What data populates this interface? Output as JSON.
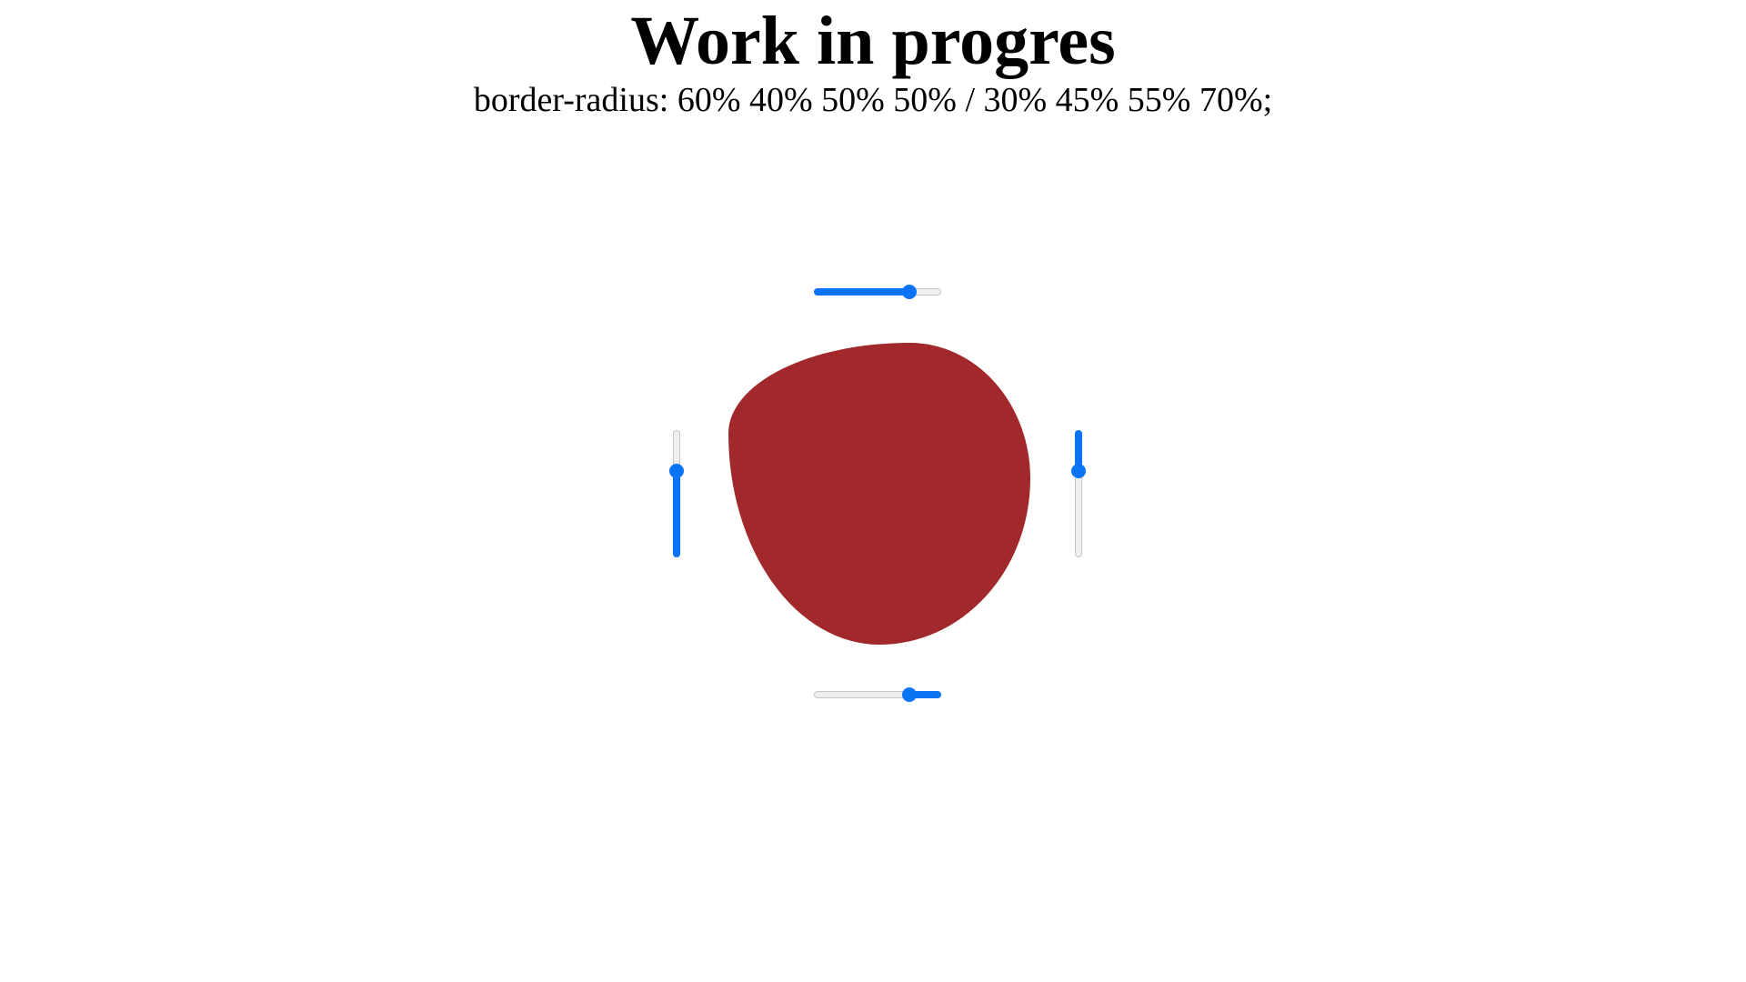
{
  "header": {
    "title": "Work in progres",
    "subtitle": "border-radius: 60% 40% 50% 50% / 30% 45% 55% 70%;"
  },
  "shape": {
    "color": "#a1292b",
    "border_radius": "60% 40% 50% 50% / 30% 45% 55% 70%"
  },
  "sliders": {
    "top": {
      "value": 0.78,
      "accent": "#0a74f5"
    },
    "bottom": {
      "value": 0.78,
      "accent": "#0a74f5"
    },
    "left": {
      "value": 0.3,
      "accent": "#0a74f5"
    },
    "right": {
      "value": 0.3,
      "accent": "#0a74f5"
    }
  }
}
